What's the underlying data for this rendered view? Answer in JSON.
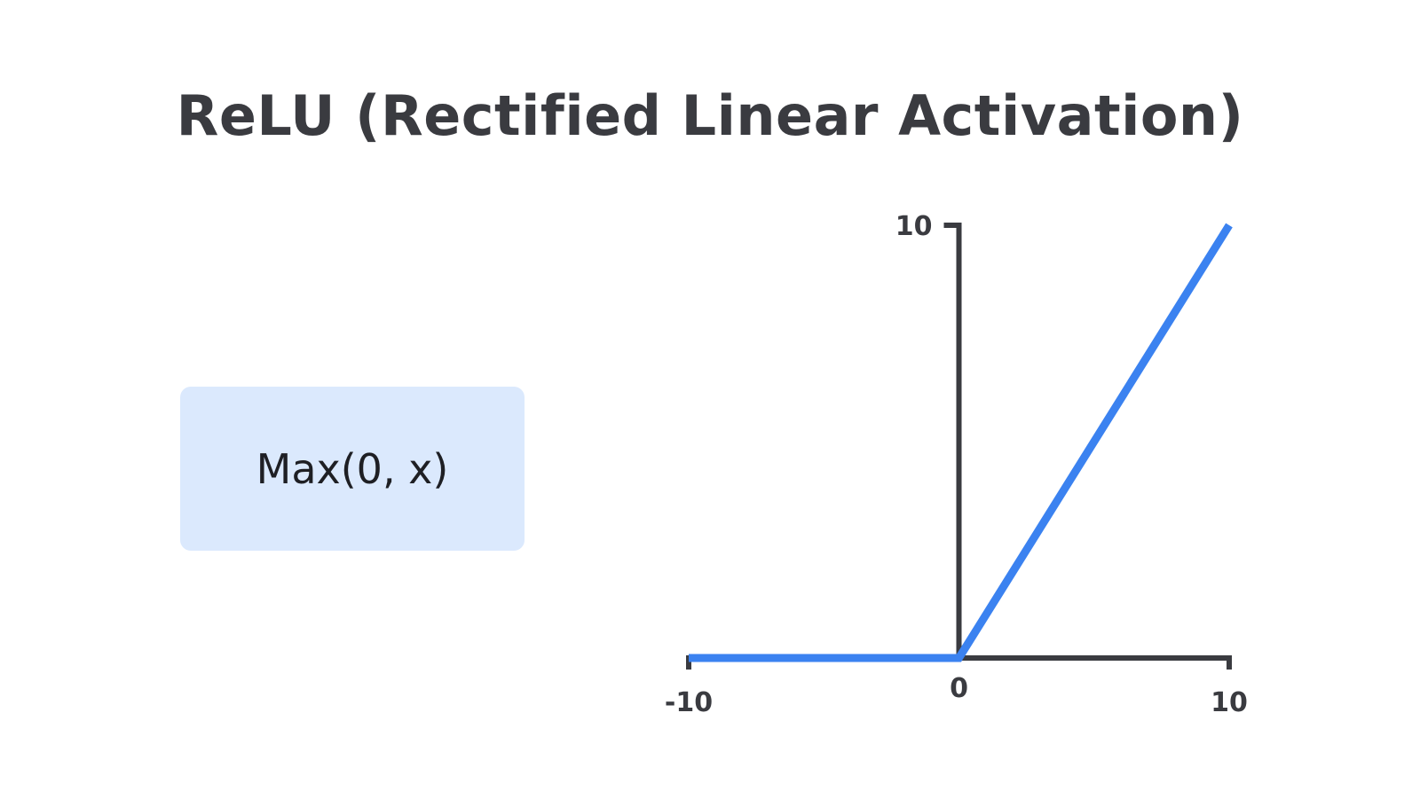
{
  "title": "ReLU (Rectified Linear Activation)",
  "formula": "Max(0, x)",
  "colors": {
    "text": "#3a3b40",
    "axis": "#3a3b40",
    "line": "#3b82f0",
    "box": "#dbe9fd"
  },
  "chart_data": {
    "type": "line",
    "title": "",
    "xlabel": "",
    "ylabel": "",
    "xlim": [
      -10,
      10
    ],
    "ylim": [
      0,
      10
    ],
    "grid": false,
    "x_ticks": [
      {
        "value": -10,
        "label": "-10"
      },
      {
        "value": 0,
        "label": "0"
      },
      {
        "value": 10,
        "label": "10"
      }
    ],
    "y_ticks": [
      {
        "value": 10,
        "label": "10"
      }
    ],
    "series": [
      {
        "x": [
          -10,
          0,
          10
        ],
        "y": [
          0,
          0,
          10
        ]
      }
    ]
  }
}
